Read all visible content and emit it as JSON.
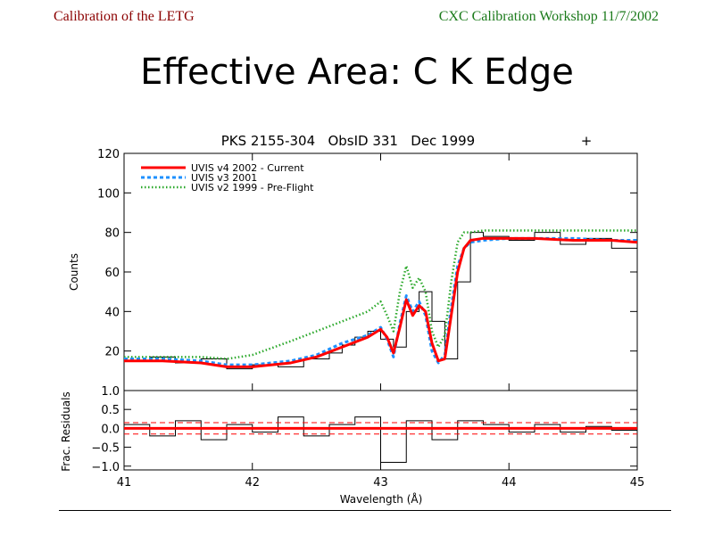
{
  "header": {
    "left": "Calibration of the LETG",
    "right": "CXC Calibration Workshop 11/7/2002"
  },
  "slide_title": "Effective Area: C K Edge",
  "chart_data": [
    {
      "type": "line",
      "title": "PKS 2155-304   ObsID 331   Dec 1999",
      "title_marker": "+",
      "xlabel": "",
      "ylabel": "Counts",
      "xlim": [
        41,
        45
      ],
      "ylim": [
        0,
        120
      ],
      "yticks": [
        "20",
        "40",
        "60",
        "80",
        "100",
        "120"
      ],
      "legend_position": "top-left",
      "series": [
        {
          "name": "UVIS v4 2002 - Current",
          "color": "#ff0000",
          "style": "solid",
          "x": [
            41.0,
            41.3,
            41.6,
            41.8,
            42.0,
            42.3,
            42.5,
            42.7,
            42.9,
            43.0,
            43.05,
            43.1,
            43.15,
            43.2,
            43.25,
            43.3,
            43.35,
            43.4,
            43.45,
            43.5,
            43.55,
            43.6,
            43.65,
            43.7,
            43.8,
            44.0,
            44.2,
            44.5,
            44.8,
            45.0
          ],
          "y": [
            15,
            15,
            14,
            12,
            12,
            14,
            17,
            22,
            27,
            31,
            27,
            19,
            32,
            46,
            38,
            43,
            40,
            24,
            15,
            16,
            38,
            60,
            72,
            76,
            77,
            77,
            77,
            76,
            76,
            75
          ]
        },
        {
          "name": "UVIS v3 2001",
          "color": "#1e90ff",
          "style": "dashed",
          "x": [
            41.0,
            41.3,
            41.6,
            41.8,
            42.0,
            42.3,
            42.5,
            42.7,
            42.9,
            43.0,
            43.05,
            43.1,
            43.15,
            43.2,
            43.25,
            43.3,
            43.35,
            43.4,
            43.45,
            43.5,
            43.55,
            43.6,
            43.65,
            43.7,
            43.8,
            44.0,
            44.2,
            44.5,
            44.8,
            45.0
          ],
          "y": [
            16,
            16,
            15,
            13,
            13,
            15,
            18,
            24,
            28,
            32,
            26,
            17,
            34,
            48,
            40,
            45,
            38,
            20,
            14,
            18,
            42,
            63,
            72,
            75,
            76,
            77,
            77,
            77,
            76,
            76
          ]
        },
        {
          "name": "UVIS v2 1999 - Pre-Flight",
          "color": "#2aa82a",
          "style": "dotted",
          "x": [
            41.0,
            41.3,
            41.6,
            41.8,
            42.0,
            42.3,
            42.5,
            42.7,
            42.9,
            43.0,
            43.05,
            43.1,
            43.15,
            43.2,
            43.25,
            43.3,
            43.35,
            43.4,
            43.45,
            43.5,
            43.55,
            43.6,
            43.65,
            43.7,
            43.8,
            44.0,
            44.2,
            44.5,
            44.8,
            45.0
          ],
          "y": [
            17,
            17,
            17,
            16,
            18,
            25,
            30,
            35,
            40,
            45,
            38,
            30,
            50,
            63,
            52,
            57,
            50,
            30,
            22,
            28,
            55,
            75,
            80,
            80,
            81,
            81,
            81,
            81,
            81,
            81
          ]
        },
        {
          "name": "",
          "color": "#000000",
          "style": "histogram",
          "x": [
            41.0,
            41.2,
            41.4,
            41.6,
            41.8,
            42.0,
            42.2,
            42.4,
            42.6,
            42.7,
            42.8,
            42.9,
            43.0,
            43.1,
            43.2,
            43.3,
            43.4,
            43.5,
            43.6,
            43.7,
            43.8,
            44.0,
            44.2,
            44.4,
            44.6,
            44.8,
            45.0
          ],
          "y": [
            15,
            17,
            14,
            16,
            11,
            13,
            12,
            16,
            19,
            23,
            27,
            30,
            26,
            22,
            40,
            50,
            35,
            16,
            55,
            80,
            78,
            76,
            80,
            74,
            77,
            72,
            76
          ]
        }
      ]
    },
    {
      "type": "line",
      "xlabel": "Wavelength (Å)",
      "ylabel": "Frac. Residuals",
      "xlim": [
        41,
        45
      ],
      "ylim": [
        -1.1,
        1.0
      ],
      "xticks": [
        "41",
        "42",
        "43",
        "44",
        "45"
      ],
      "yticks": [
        "−1.0",
        "−0.5",
        "0.0",
        "0.5",
        "1.0"
      ],
      "series": [
        {
          "name": "",
          "color": "#000000",
          "style": "histogram",
          "x": [
            41.0,
            41.2,
            41.4,
            41.6,
            41.8,
            42.0,
            42.2,
            42.4,
            42.6,
            42.8,
            43.0,
            43.2,
            43.4,
            43.6,
            43.8,
            44.0,
            44.2,
            44.4,
            44.6,
            44.8,
            45.0
          ],
          "y": [
            0.1,
            -0.2,
            0.2,
            -0.3,
            0.1,
            -0.1,
            0.3,
            -0.2,
            0.1,
            0.3,
            -0.9,
            0.2,
            -0.3,
            0.2,
            0.1,
            -0.1,
            0.1,
            -0.1,
            0.05,
            -0.05,
            0.0
          ]
        }
      ]
    }
  ]
}
